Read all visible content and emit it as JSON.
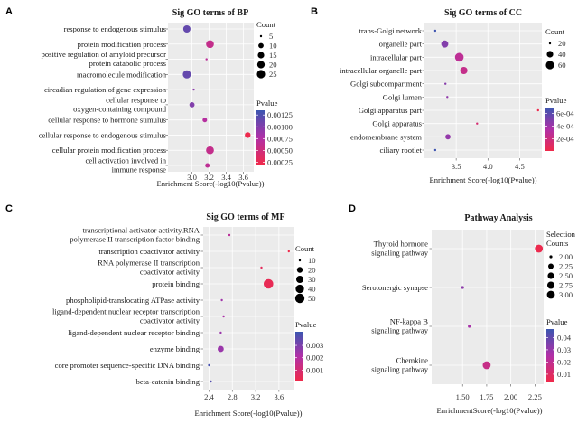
{
  "chart_data": [
    {
      "type": "scatter",
      "panel": "A",
      "title": "Sig GO terms of BP",
      "xlabel": "Enrichment Score(-log10(Pvalue))",
      "xlim": [
        2.72,
        3.72
      ],
      "xticks": [
        3.0,
        3.2,
        3.4,
        3.6
      ],
      "xtick_labels": [
        "3.0",
        "3.2",
        "3.4",
        "3.6"
      ],
      "size_legend": {
        "title": "Count",
        "values": [
          5,
          10,
          15,
          20,
          25
        ],
        "labels": [
          "5",
          "10",
          "15",
          "20",
          "25"
        ]
      },
      "color_legend": {
        "title": "Pvalue",
        "min": 0.0002,
        "max": 0.00135,
        "ticks": [
          0.00125,
          0.001,
          0.00075,
          0.0005,
          0.00025
        ],
        "labels": [
          "0.00125",
          "0.00100",
          "0.00075",
          "0.00050",
          "0.00025"
        ]
      },
      "terms": [
        {
          "label": [
            "response to endogenous stimulus"
          ],
          "x": 2.94,
          "count": 19,
          "pvalue": 0.00115
        },
        {
          "label": [
            "protein modification process"
          ],
          "x": 3.21,
          "count": 22,
          "pvalue": 0.0006
        },
        {
          "label": [
            "positive regulation of amyloid precursor",
            "protein catabolic process"
          ],
          "x": 3.17,
          "count": 3,
          "pvalue": 0.00068
        },
        {
          "label": [
            "macromolecule modification"
          ],
          "x": 2.94,
          "count": 24,
          "pvalue": 0.00115
        },
        {
          "label": [
            "circadian regulation of gene expression"
          ],
          "x": 3.02,
          "count": 4,
          "pvalue": 0.00095
        },
        {
          "label": [
            "cellular response to",
            "oxygen-containing compound"
          ],
          "x": 3.0,
          "count": 10,
          "pvalue": 0.001
        },
        {
          "label": [
            "cellular response to hormone stimulus"
          ],
          "x": 3.15,
          "count": 8,
          "pvalue": 0.00072
        },
        {
          "label": [
            "cellular response to endogenous stimulus"
          ],
          "x": 3.65,
          "count": 12,
          "pvalue": 0.00022
        },
        {
          "label": [
            "cellular protein modification process"
          ],
          "x": 3.21,
          "count": 22,
          "pvalue": 0.0006
        },
        {
          "label": [
            "cell activation involved in",
            "immune response"
          ],
          "x": 3.18,
          "count": 8,
          "pvalue": 0.00065
        }
      ]
    },
    {
      "type": "scatter",
      "panel": "B",
      "title": "Sig GO terms of CC",
      "xlabel": "Enrichment Score(-log10(Pvalue))",
      "xlim": [
        3.0,
        4.85
      ],
      "xticks": [
        3.5,
        4.0,
        4.5
      ],
      "xtick_labels": [
        "3.5",
        "4.0",
        "4.5"
      ],
      "size_legend": {
        "title": "Count",
        "values": [
          20,
          40,
          60
        ],
        "labels": [
          "20",
          "40",
          "60"
        ]
      },
      "color_legend": {
        "title": "Pvalue",
        "min": 1e-05,
        "max": 0.00069,
        "ticks": [
          0.0006,
          0.0004,
          0.0002
        ],
        "labels": [
          "6e-04",
          "4e-04",
          "2e-04"
        ]
      },
      "terms": [
        {
          "label": [
            "trans-Golgi network"
          ],
          "x": 3.17,
          "count": 5,
          "pvalue": 0.00068
        },
        {
          "label": [
            "organelle part"
          ],
          "x": 3.32,
          "count": 45,
          "pvalue": 0.00048
        },
        {
          "label": [
            "intracellular part"
          ],
          "x": 3.55,
          "count": 65,
          "pvalue": 0.00028
        },
        {
          "label": [
            "intracellular organelle part"
          ],
          "x": 3.62,
          "count": 48,
          "pvalue": 0.00024
        },
        {
          "label": [
            "Golgi subcompartment"
          ],
          "x": 3.33,
          "count": 8,
          "pvalue": 0.00047
        },
        {
          "label": [
            "Golgi lumen"
          ],
          "x": 3.36,
          "count": 3,
          "pvalue": 0.00044
        },
        {
          "label": [
            "Golgi apparatus part"
          ],
          "x": 4.79,
          "count": 10,
          "pvalue": 2e-05
        },
        {
          "label": [
            "Golgi apparatus"
          ],
          "x": 3.83,
          "count": 12,
          "pvalue": 0.00015
        },
        {
          "label": [
            "endomembrane system"
          ],
          "x": 3.37,
          "count": 30,
          "pvalue": 0.00043
        },
        {
          "label": [
            "ciliary rootlet"
          ],
          "x": 3.17,
          "count": 2,
          "pvalue": 0.00068
        }
      ]
    },
    {
      "type": "scatter",
      "panel": "C",
      "title": "Sig GO terms of MF",
      "xlabel": "Enrichment Score(-log10(Pvalue))",
      "xlim": [
        2.3,
        3.85
      ],
      "xticks": [
        2.4,
        2.8,
        3.2,
        3.6
      ],
      "xtick_labels": [
        "2.4",
        "2.8",
        "3.2",
        "3.6"
      ],
      "size_legend": {
        "title": "Count",
        "values": [
          10,
          20,
          30,
          40,
          50
        ],
        "labels": [
          "10",
          "20",
          "30",
          "40",
          "50"
        ]
      },
      "color_legend": {
        "title": "Pvalue",
        "min": 0.00015,
        "max": 0.0041,
        "ticks": [
          0.003,
          0.002,
          0.001
        ],
        "labels": [
          "0.003",
          "0.002",
          "0.001"
        ]
      },
      "terms": [
        {
          "label": [
            "transcriptional activator activity,RNA",
            "polymerase II transcription factor binding"
          ],
          "x": 2.75,
          "count": 6,
          "pvalue": 0.0018
        },
        {
          "label": [
            "transcription coactivator activity"
          ],
          "x": 3.77,
          "count": 8,
          "pvalue": 0.00017
        },
        {
          "label": [
            "RNA polymerase II transcription",
            "coactivator activity"
          ],
          "x": 3.3,
          "count": 4,
          "pvalue": 0.0005
        },
        {
          "label": [
            "protein binding"
          ],
          "x": 3.42,
          "count": 52,
          "pvalue": 0.00038
        },
        {
          "label": [
            "phospholipid-translocating ATPase activity"
          ],
          "x": 2.62,
          "count": 3,
          "pvalue": 0.0024
        },
        {
          "label": [
            "ligand-dependent nuclear receptor transcription",
            "coactivator activity"
          ],
          "x": 2.65,
          "count": 7,
          "pvalue": 0.0022
        },
        {
          "label": [
            "ligand-dependent nuclear receptor binding"
          ],
          "x": 2.6,
          "count": 5,
          "pvalue": 0.0025
        },
        {
          "label": [
            "enzyme binding"
          ],
          "x": 2.6,
          "count": 22,
          "pvalue": 0.0025
        },
        {
          "label": [
            "core promoter sequence-specific DNA binding"
          ],
          "x": 2.4,
          "count": 3,
          "pvalue": 0.0039
        },
        {
          "label": [
            "beta-catenin binding"
          ],
          "x": 2.43,
          "count": 8,
          "pvalue": 0.0037
        }
      ]
    },
    {
      "type": "scatter",
      "panel": "D",
      "title": "Pathway Analysis",
      "xlabel": "EnrichmentScore(-log10(Pvalue))",
      "xlim": [
        1.18,
        2.34
      ],
      "xticks": [
        1.5,
        1.75,
        2.0,
        2.25
      ],
      "xtick_labels": [
        "1.50",
        "1.75",
        "2.00",
        "2.25"
      ],
      "size_legend": {
        "title": [
          "Selection",
          "Counts"
        ],
        "values": [
          2.0,
          2.25,
          2.5,
          2.75,
          3.0
        ],
        "labels": [
          "2.00",
          "2.25",
          "2.50",
          "2.75",
          "3.00"
        ]
      },
      "color_legend": {
        "title": "Pvalue",
        "min": 0.004,
        "max": 0.047,
        "ticks": [
          0.04,
          0.03,
          0.02,
          0.01
        ],
        "labels": [
          "0.04",
          "0.03",
          "0.02",
          "0.01"
        ]
      },
      "terms": [
        {
          "label": [
            "Thyroid hormone",
            "signaling pathway"
          ],
          "x": 2.29,
          "count": 3,
          "pvalue": 0.005
        },
        {
          "label": [
            "Serotonergic synapse"
          ],
          "x": 1.5,
          "count": 2,
          "pvalue": 0.032
        },
        {
          "label": [
            "NF-kappa B",
            "signaling pathway"
          ],
          "x": 1.57,
          "count": 2,
          "pvalue": 0.027
        },
        {
          "label": [
            "Chemkine",
            "signaling pathway"
          ],
          "x": 1.75,
          "count": 3,
          "pvalue": 0.018
        }
      ]
    }
  ]
}
